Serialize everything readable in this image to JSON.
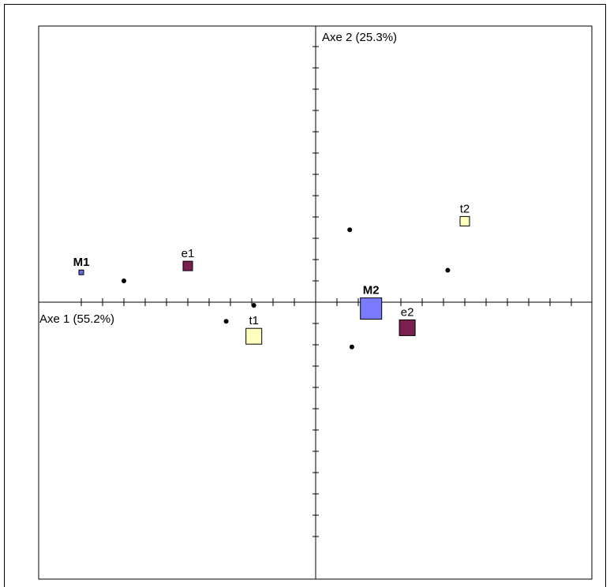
{
  "chart_data": {
    "type": "scatter",
    "title": "",
    "xlabel": "Axe 1 (55.2%)",
    "ylabel": "Axe 2 (25.3%)",
    "xlim": [
      -13,
      13
    ],
    "ylim": [
      -13,
      13
    ],
    "grid": false,
    "x_ticks": [
      -11,
      -10,
      -9,
      -8,
      -7,
      -6,
      -5,
      -4,
      -3,
      -2,
      -1,
      1,
      2,
      3,
      4,
      5,
      6,
      7,
      8,
      9,
      10,
      11,
      12
    ],
    "y_ticks": [
      -11,
      -10,
      -9,
      -8,
      -7,
      -6,
      -5,
      -4,
      -3,
      -2,
      -1,
      1,
      2,
      3,
      4,
      5,
      6,
      7,
      8,
      9,
      10,
      11,
      12
    ],
    "labeled_points": [
      {
        "label": "M1",
        "x": -11,
        "y": 1.4,
        "size": 1,
        "color": "#6a6adf",
        "label_weight": "bold"
      },
      {
        "label": "e1",
        "x": -6,
        "y": 1.7,
        "size": 2,
        "color": "#7b1f4f",
        "label_weight": "normal"
      },
      {
        "label": "t2",
        "x": 7,
        "y": 3.8,
        "size": 2,
        "color": "#ffffc0",
        "label_weight": "normal"
      },
      {
        "label": "M2",
        "x": 2.6,
        "y": -0.3,
        "size": 5,
        "color": "#7a7aff",
        "label_weight": "bold"
      },
      {
        "label": "e2",
        "x": 4.3,
        "y": -1.2,
        "size": 3,
        "color": "#7b1f4f",
        "label_weight": "normal"
      },
      {
        "label": "t1",
        "x": -2.9,
        "y": -1.6,
        "size": 3,
        "color": "#ffffc0",
        "label_weight": "normal"
      }
    ],
    "unlabeled_points": [
      {
        "x": -9,
        "y": 1.0
      },
      {
        "x": 1.6,
        "y": 3.4
      },
      {
        "x": 6.2,
        "y": 1.5
      },
      {
        "x": -2.9,
        "y": -0.15
      },
      {
        "x": -4.2,
        "y": -0.9
      },
      {
        "x": 1.7,
        "y": -2.1
      }
    ]
  }
}
